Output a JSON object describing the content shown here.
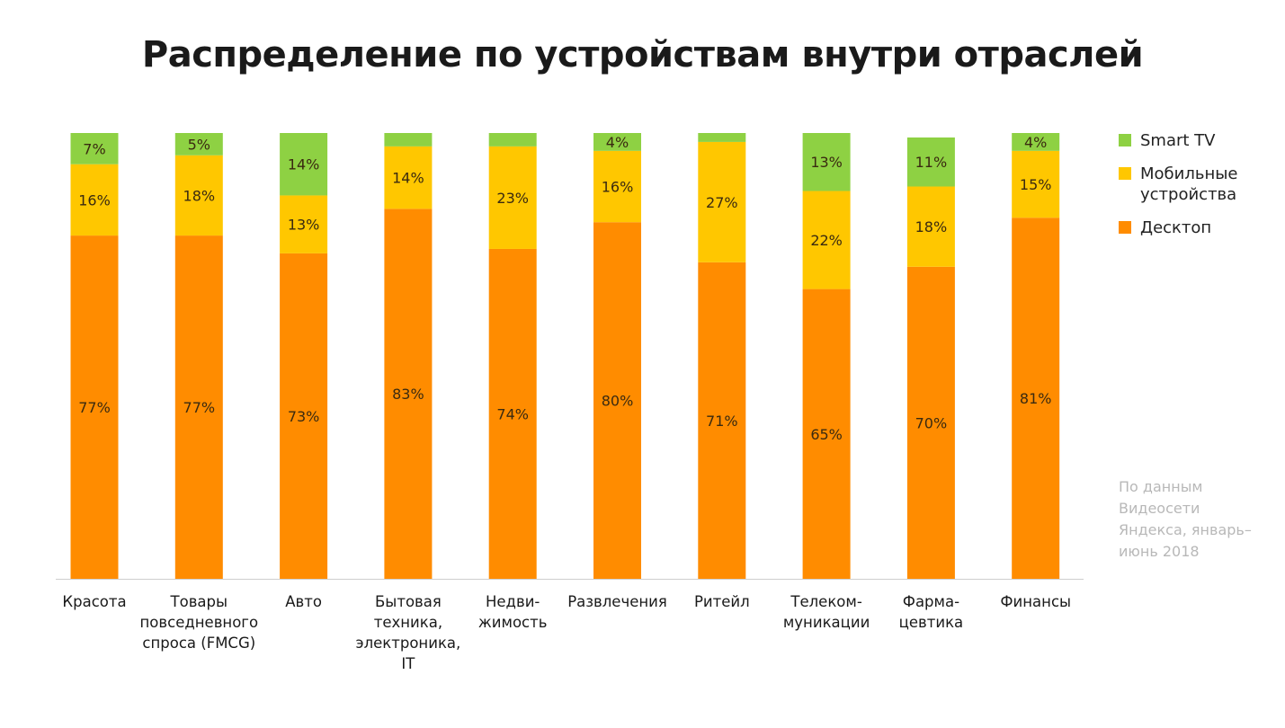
{
  "title": "Распределение по устройствам внутри отраслей",
  "chart_data": {
    "type": "bar",
    "stacked": true,
    "unit": "%",
    "categories": [
      [
        "Красота"
      ],
      [
        "Товары",
        "повседневного",
        "спроса (FMCG)"
      ],
      [
        "Авто"
      ],
      [
        "Бытовая",
        "техника,",
        "электроника,",
        "IT"
      ],
      [
        "Недви-",
        "жимость"
      ],
      [
        "Развлечения"
      ],
      [
        "Ритейл"
      ],
      [
        "Телеком-",
        "муникации"
      ],
      [
        "Фарма-",
        "цевтика"
      ],
      [
        "Финансы"
      ]
    ],
    "series": [
      {
        "name": "Десктоп",
        "color": "#FF8C00",
        "values": [
          77,
          77,
          73,
          83,
          74,
          80,
          71,
          65,
          70,
          81
        ],
        "labels": [
          "77%",
          "77%",
          "73%",
          "83%",
          "74%",
          "80%",
          "71%",
          "65%",
          "70%",
          "81%"
        ]
      },
      {
        "name": "Мобильные устройства",
        "color": "#FFC700",
        "values": [
          16,
          18,
          13,
          14,
          23,
          16,
          27,
          22,
          18,
          15
        ],
        "labels": [
          "16%",
          "18%",
          "13%",
          "14%",
          "23%",
          "16%",
          "27%",
          "22%",
          "18%",
          "15%"
        ]
      },
      {
        "name": "Smart TV",
        "color": "#8ED143",
        "values": [
          7,
          5,
          14,
          3,
          3,
          4,
          2,
          13,
          11,
          4
        ],
        "labels": [
          "7%",
          "5%",
          "14%",
          "",
          "",
          "4%",
          "",
          "13%",
          "11%",
          "4%"
        ]
      }
    ],
    "ylim": [
      0,
      100
    ],
    "grid": false,
    "legend_position": "right"
  },
  "legend": [
    {
      "label": "Smart TV",
      "color": "#8ED143"
    },
    {
      "label": "Мобильные устройства",
      "color": "#FFC700"
    },
    {
      "label": "Десктоп",
      "color": "#FF8C00"
    }
  ],
  "source_note": "По данным Видеосети Яндекса, январь–июнь 2018"
}
